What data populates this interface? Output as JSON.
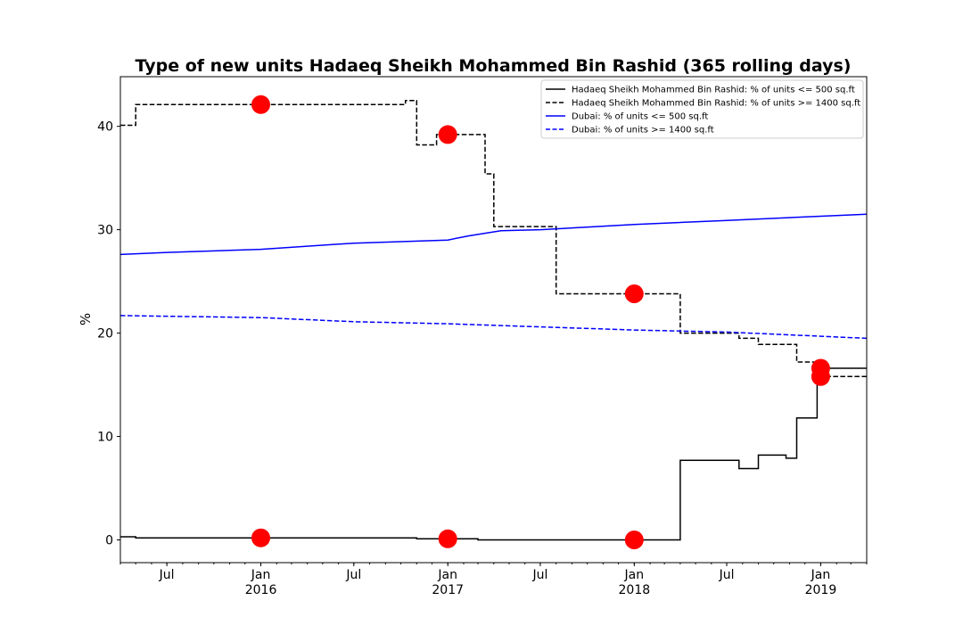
{
  "chart_data": {
    "type": "line",
    "title": "Type of new units Hadaeq Sheikh Mohammed Bin Rashid (365 rolling days)",
    "xlabel": "",
    "ylabel": "%",
    "x_range": [
      "2015-04-01",
      "2019-04-01"
    ],
    "ylim": [
      -2.2,
      44.8
    ],
    "y_ticks": [
      0,
      10,
      20,
      30,
      40
    ],
    "x_ticks": [
      {
        "date": "2015-07-01",
        "label": "Jul",
        "sublabel": ""
      },
      {
        "date": "2016-01-01",
        "label": "Jan",
        "sublabel": "2016"
      },
      {
        "date": "2016-07-01",
        "label": "Jul",
        "sublabel": ""
      },
      {
        "date": "2017-01-01",
        "label": "Jan",
        "sublabel": "2017"
      },
      {
        "date": "2017-07-01",
        "label": "Jul",
        "sublabel": ""
      },
      {
        "date": "2018-01-01",
        "label": "Jan",
        "sublabel": "2018"
      },
      {
        "date": "2018-07-01",
        "label": "Jul",
        "sublabel": ""
      },
      {
        "date": "2019-01-01",
        "label": "Jan",
        "sublabel": "2019"
      }
    ],
    "grid": false,
    "legend_position": "top-right",
    "series": [
      {
        "name": "Hadaeq Sheikh Mohammed Bin Rashid: % of units <= 500 sq.ft",
        "color": "#000000",
        "dash": "solid",
        "step": true,
        "points": [
          [
            "2015-04-01",
            0.3
          ],
          [
            "2015-05-01",
            0.2
          ],
          [
            "2016-01-01",
            0.2
          ],
          [
            "2016-11-01",
            0.1
          ],
          [
            "2017-01-01",
            0.1
          ],
          [
            "2017-03-01",
            0.0
          ],
          [
            "2018-01-01",
            0.0
          ],
          [
            "2018-04-01",
            7.7
          ],
          [
            "2018-07-25",
            6.9
          ],
          [
            "2018-09-01",
            8.2
          ],
          [
            "2018-10-25",
            7.9
          ],
          [
            "2018-11-15",
            11.8
          ],
          [
            "2018-12-25",
            16.6
          ],
          [
            "2019-04-01",
            16.6
          ]
        ]
      },
      {
        "name": "Hadaeq Sheikh Mohammed Bin Rashid: % of units >= 1400 sq.ft",
        "color": "#000000",
        "dash": "dashed",
        "step": true,
        "points": [
          [
            "2015-04-01",
            40.1
          ],
          [
            "2015-05-01",
            42.1
          ],
          [
            "2016-10-10",
            42.5
          ],
          [
            "2016-11-01",
            38.2
          ],
          [
            "2016-12-10",
            39.2
          ],
          [
            "2017-03-15",
            35.4
          ],
          [
            "2017-04-01",
            30.3
          ],
          [
            "2017-08-01",
            23.8
          ],
          [
            "2018-04-01",
            20.0
          ],
          [
            "2018-07-25",
            19.5
          ],
          [
            "2018-09-01",
            18.9
          ],
          [
            "2018-11-15",
            17.2
          ],
          [
            "2018-12-25",
            15.8
          ],
          [
            "2019-04-01",
            15.8
          ]
        ]
      },
      {
        "name": "Dubai: % of units <= 500 sq.ft",
        "color": "#0000ff",
        "dash": "solid",
        "step": false,
        "points": [
          [
            "2015-04-01",
            27.6
          ],
          [
            "2015-07-01",
            27.8
          ],
          [
            "2016-01-01",
            28.1
          ],
          [
            "2016-07-01",
            28.7
          ],
          [
            "2017-01-01",
            29.0
          ],
          [
            "2017-02-10",
            29.4
          ],
          [
            "2017-04-15",
            29.9
          ],
          [
            "2017-07-01",
            30.0
          ],
          [
            "2018-01-01",
            30.5
          ],
          [
            "2018-07-01",
            30.9
          ],
          [
            "2019-01-01",
            31.3
          ],
          [
            "2019-04-01",
            31.5
          ]
        ]
      },
      {
        "name": "Dubai: % of units >= 1400 sq.ft",
        "color": "#0000ff",
        "dash": "dashed",
        "step": false,
        "points": [
          [
            "2015-04-01",
            21.7
          ],
          [
            "2016-01-01",
            21.5
          ],
          [
            "2016-07-01",
            21.1
          ],
          [
            "2017-01-01",
            20.9
          ],
          [
            "2017-07-01",
            20.6
          ],
          [
            "2018-01-01",
            20.3
          ],
          [
            "2018-07-01",
            20.1
          ],
          [
            "2019-01-01",
            19.7
          ],
          [
            "2019-04-01",
            19.5
          ]
        ]
      }
    ],
    "markers": {
      "color": "#ff0000",
      "points": [
        [
          "2016-01-01",
          42.1
        ],
        [
          "2016-01-01",
          0.2
        ],
        [
          "2017-01-01",
          39.2
        ],
        [
          "2017-01-01",
          0.1
        ],
        [
          "2018-01-01",
          23.8
        ],
        [
          "2018-01-01",
          0.0
        ],
        [
          "2019-01-01",
          16.6
        ],
        [
          "2019-01-01",
          15.8
        ]
      ]
    }
  }
}
